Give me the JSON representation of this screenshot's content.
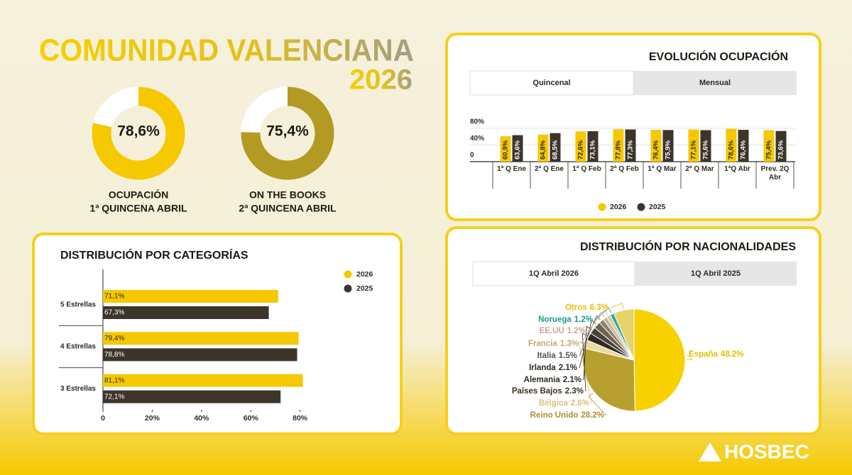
{
  "header": {
    "title": "COMUNIDAD VALENCIANA",
    "year": "2026"
  },
  "footer": {
    "logo": "HOSBEC"
  },
  "chart_data": [
    {
      "type": "donut",
      "values": [
        78.6
      ],
      "value_labels": [
        "78,6%"
      ],
      "ylim": [
        0,
        100
      ],
      "color": "#f5c800",
      "caption": [
        "OCUPACIÓN",
        "1ª QUINCENA ABRIL"
      ]
    },
    {
      "type": "donut",
      "values": [
        75.4
      ],
      "value_labels": [
        "75,4%"
      ],
      "ylim": [
        0,
        100
      ],
      "color": "#b39a22",
      "caption": [
        "ON THE BOOKS",
        "2ª QUINCENA ABRIL"
      ]
    },
    {
      "type": "bar",
      "title": "EVOLUCIÓN OCUPACIÓN",
      "tabs": [
        "Quincenal",
        "Mensual"
      ],
      "categories": [
        "1ª Q Ene",
        "2ª Q Ene",
        "1ª Q Feb",
        "2ª Q Feb",
        "1ª Q Mar",
        "2ª Q Mar",
        "1ªQ Abr",
        "Prev. 2Q Abr"
      ],
      "series": [
        {
          "name": "2026",
          "color": "#f5c800",
          "values": [
            60.9,
            64.8,
            72.6,
            77.8,
            76.4,
            77.1,
            78.6,
            75.4
          ],
          "value_labels": [
            "60,9%",
            "64,8%",
            "72,6%",
            "77,8%",
            "76,4%",
            "77,1%",
            "78,6%",
            "75,4%"
          ]
        },
        {
          "name": "2025",
          "color": "#3d342a",
          "values": [
            63.6,
            68.5,
            73.1,
            77.3,
            75.9,
            75.6,
            76.4,
            73.6
          ],
          "value_labels": [
            "63,6%",
            "68,5%",
            "73,1%",
            "77,3%",
            "75,9%",
            "75,6%",
            "76,4%",
            "73,6%"
          ]
        }
      ],
      "ylim": [
        0,
        80
      ],
      "yticks": [
        0,
        {
          "value": 40,
          "label": "40%"
        },
        {
          "value": 80,
          "label": "80%"
        }
      ],
      "grid": true,
      "legend": "bottom"
    },
    {
      "type": "hbar",
      "title": "DISTRIBUCIÓN POR CATEGORÍAS",
      "categories": [
        "5 Estrellas",
        "4 Estrellas",
        "3 Estrellas"
      ],
      "series": [
        {
          "name": "2026",
          "color": "#f5c800",
          "values": [
            71.1,
            79.4,
            81.1
          ],
          "value_labels": [
            "71,1%",
            "79,4%",
            "81,1%"
          ]
        },
        {
          "name": "2025",
          "color": "#3d342a",
          "values": [
            67.3,
            78.8,
            72.1
          ],
          "value_labels": [
            "67,3%",
            "78,8%",
            "72,1%"
          ]
        }
      ],
      "xlim": [
        0,
        85
      ],
      "xticks": [
        0,
        {
          "value": 20,
          "label": "20%"
        },
        {
          "value": 40,
          "label": "40%"
        },
        {
          "value": 60,
          "label": "60%"
        },
        {
          "value": 80,
          "label": "80%"
        }
      ],
      "legend": "top-right"
    },
    {
      "type": "pie",
      "title": "DISTRIBUCIÓN POR NACIONALIDADES",
      "tabs": [
        "1Q Abril 2026",
        "1Q Abril 2025"
      ],
      "categories": [
        "España",
        "Reino Unido",
        "Bélgica",
        "Países Bajos",
        "Alemania",
        "Irlanda",
        "Italia",
        "Francia",
        "EE.UU",
        "Noruega",
        "Otros"
      ],
      "values": [
        48.2,
        28.2,
        2.6,
        2.3,
        2.1,
        2.1,
        1.5,
        1.3,
        1.2,
        1.2,
        6.3
      ],
      "value_labels": [
        "48.2%",
        "28.2%",
        "2.6%",
        "2.3%",
        "2.1%",
        "2.1%",
        "1.5%",
        "1.3%",
        "1.2%",
        "1.2%",
        "6.3%"
      ],
      "colors": [
        "#f7d100",
        "#b8a030",
        "#e8dca0",
        "#2e2a22",
        "#4a4438",
        "#6b6250",
        "#8a8070",
        "#c8b890",
        "#d8c8a8",
        "#2aa89a",
        "#e6d36a"
      ],
      "label_colors": [
        "#e0c000",
        "#a89030",
        "#d8c07a",
        "#3a3020",
        "#2e2a22",
        "#2e2a22",
        "#555555",
        "#c8a870",
        "#c8a890",
        "#1a9a8a",
        "#e0c000"
      ]
    }
  ]
}
